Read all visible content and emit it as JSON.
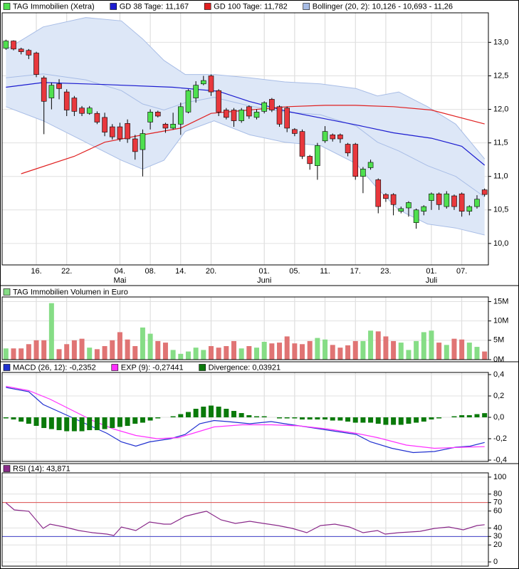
{
  "chart_data": [
    {
      "type": "candlestick",
      "name": "TAG Immobilien (Xetra)",
      "categories": [
        null,
        null,
        null,
        null,
        "16.",
        null,
        null,
        null,
        "22.",
        null,
        null,
        null,
        null,
        null,
        null,
        "04.",
        null,
        null,
        null,
        "08.",
        null,
        null,
        null,
        "14.",
        null,
        null,
        null,
        "20.",
        null,
        null,
        null,
        null,
        null,
        null,
        "01.",
        null,
        null,
        null,
        "05.",
        null,
        null,
        null,
        "11.",
        null,
        null,
        null,
        "17.",
        null,
        null,
        null,
        "23.",
        null,
        null,
        null,
        null,
        null,
        "01.",
        null,
        null,
        null,
        "07.",
        null,
        null,
        null
      ],
      "months": [
        null,
        null,
        null,
        null,
        null,
        null,
        null,
        null,
        null,
        null,
        null,
        null,
        null,
        null,
        null,
        "Mai",
        null,
        null,
        null,
        null,
        null,
        null,
        null,
        null,
        null,
        null,
        null,
        null,
        null,
        null,
        null,
        null,
        null,
        null,
        "Juni",
        null,
        null,
        null,
        null,
        null,
        null,
        null,
        null,
        null,
        null,
        null,
        null,
        null,
        null,
        null,
        null,
        null,
        null,
        null,
        null,
        null,
        "Juli",
        null,
        null,
        null,
        null,
        null,
        null,
        null
      ],
      "open": [
        12.91,
        13.02,
        12.9,
        12.88,
        12.84,
        12.47,
        12.17,
        12.38,
        12.26,
        12.17,
        12.02,
        11.94,
        11.94,
        11.88,
        11.74,
        11.74,
        11.79,
        11.56,
        11.4,
        11.81,
        11.96,
        11.78,
        11.72,
        11.78,
        11.96,
        12.17,
        12.38,
        12.5,
        12.28,
        11.99,
        11.99,
        11.83,
        12.04,
        11.88,
        11.97,
        12.15,
        12.04,
        12.02,
        11.7,
        11.67,
        11.3,
        11.16,
        11.53,
        11.62,
        11.62,
        11.48,
        11.48,
        11.0,
        11.13,
        10.95,
        10.73,
        10.73,
        10.48,
        10.53,
        10.31,
        10.48,
        10.64,
        10.74,
        10.55,
        10.71,
        10.74,
        10.48,
        10.55,
        10.8
      ],
      "high": [
        13.04,
        13.03,
        12.92,
        12.9,
        12.86,
        12.5,
        12.4,
        12.45,
        12.3,
        12.2,
        12.05,
        12.05,
        11.97,
        11.95,
        11.78,
        11.8,
        11.85,
        11.62,
        11.7,
        12.0,
        11.98,
        11.8,
        11.95,
        12.1,
        12.3,
        12.42,
        12.5,
        12.52,
        12.3,
        12.02,
        12.02,
        12.02,
        12.06,
        12.0,
        12.12,
        12.17,
        12.06,
        12.04,
        11.72,
        11.7,
        11.32,
        11.5,
        11.75,
        11.64,
        11.64,
        11.5,
        11.5,
        11.14,
        11.25,
        10.97,
        10.75,
        10.75,
        10.55,
        10.63,
        10.52,
        10.57,
        10.76,
        10.76,
        10.78,
        10.73,
        10.76,
        10.57,
        10.72,
        10.82
      ],
      "low": [
        12.89,
        12.88,
        12.82,
        12.75,
        12.48,
        11.63,
        12.0,
        12.15,
        11.9,
        11.9,
        11.9,
        11.92,
        11.78,
        11.6,
        11.55,
        11.52,
        11.5,
        11.25,
        11.0,
        11.7,
        11.88,
        11.65,
        11.7,
        11.62,
        11.94,
        12.1,
        12.36,
        12.2,
        11.9,
        11.85,
        11.74,
        11.8,
        11.86,
        11.85,
        11.94,
        11.96,
        11.74,
        11.66,
        11.6,
        11.26,
        11.1,
        10.95,
        11.5,
        11.52,
        11.5,
        11.3,
        10.95,
        10.75,
        11.1,
        10.45,
        10.62,
        10.42,
        10.45,
        10.4,
        10.22,
        10.42,
        10.5,
        10.5,
        10.52,
        10.5,
        10.4,
        10.42,
        10.52,
        10.7
      ],
      "close": [
        13.02,
        12.9,
        12.86,
        12.81,
        12.52,
        12.12,
        12.36,
        12.31,
        11.99,
        11.97,
        11.94,
        12.02,
        11.81,
        11.66,
        11.59,
        11.56,
        11.56,
        11.37,
        11.64,
        11.96,
        11.9,
        11.72,
        11.78,
        12.04,
        12.28,
        12.36,
        12.43,
        12.26,
        11.96,
        11.88,
        11.83,
        11.99,
        11.9,
        11.96,
        12.1,
        11.99,
        11.78,
        11.72,
        11.64,
        11.3,
        11.19,
        11.46,
        11.67,
        11.56,
        11.56,
        11.35,
        11.0,
        11.11,
        11.21,
        10.55,
        10.67,
        10.58,
        10.52,
        10.61,
        10.5,
        10.55,
        10.74,
        10.58,
        10.74,
        10.55,
        10.48,
        10.55,
        10.66,
        10.73
      ],
      "up_color": "#4fe04f",
      "down_color": "#e8383d",
      "ylim": [
        9.68,
        13.44
      ],
      "yticks": [
        {
          "value": 10,
          "label": "10,0"
        },
        {
          "value": 10.5,
          "label": "10,5"
        },
        {
          "value": 11,
          "label": "11,0"
        },
        {
          "value": 11.5,
          "label": "11,5"
        },
        {
          "value": 12,
          "label": "12,0"
        },
        {
          "value": 12.5,
          "label": "12,5"
        },
        {
          "value": 13,
          "label": "13,0"
        }
      ],
      "series": [
        {
          "name": "GD 38 Tage: 11,167",
          "color": "#1c1cd0",
          "x": [
            0,
            4.9,
            13,
            22,
            28,
            32,
            37,
            42,
            46,
            51,
            56,
            60,
            63
          ],
          "values": [
            12.33,
            12.4,
            12.37,
            12.33,
            12.27,
            12.12,
            11.97,
            11.86,
            11.77,
            11.65,
            11.57,
            11.45,
            11.167
          ]
        },
        {
          "name": "GD 100 Tage: 11,782",
          "color": "#e02020",
          "x": [
            2,
            9,
            13,
            18,
            23,
            27,
            32,
            37,
            42,
            46,
            51,
            56,
            63
          ],
          "values": [
            11.04,
            11.3,
            11.51,
            11.62,
            11.72,
            11.94,
            11.99,
            12.04,
            12.06,
            12.06,
            12.04,
            11.99,
            11.782
          ]
        }
      ],
      "band": {
        "name": "Bollinger (20, 2): 10,126 - 10,693 - 11,26",
        "color": "#a8bde6",
        "fill": "#dde7f7",
        "x": [
          0,
          4.9,
          10.5,
          15.2,
          18,
          20.8,
          23.6,
          27.4,
          32.1,
          36.7,
          41.4,
          46.1,
          48.9,
          51.7,
          55.5,
          59.2,
          63
        ],
        "upper": [
          12.89,
          13.23,
          13.37,
          13.32,
          13.05,
          12.73,
          12.52,
          12.52,
          12.47,
          12.41,
          12.38,
          12.31,
          12.2,
          12.26,
          12.04,
          11.78,
          11.26
        ],
        "middle": [
          12.47,
          12.53,
          12.44,
          12.28,
          12.08,
          11.99,
          12.1,
          12.18,
          12.05,
          11.96,
          11.92,
          11.75,
          11.51,
          11.38,
          11.16,
          11.0,
          10.693
        ],
        "lower": [
          12.04,
          11.83,
          11.51,
          11.24,
          11.11,
          11.24,
          11.67,
          11.83,
          11.62,
          11.51,
          11.46,
          11.19,
          10.82,
          10.5,
          10.29,
          10.23,
          10.126
        ]
      },
      "grid": true
    },
    {
      "type": "bar",
      "name": "TAG Immobilien Volumen in Euro",
      "up_color": "#86dd86",
      "down_color": "#e07474",
      "values": [
        2900000,
        2900000,
        2900000,
        4000000,
        5000000,
        5000000,
        14600000,
        2700000,
        4000000,
        5000000,
        5400000,
        3100000,
        2700000,
        3500000,
        5000000,
        7100000,
        5200000,
        3500000,
        8300000,
        6700000,
        4800000,
        4400000,
        2500000,
        1500000,
        2100000,
        3100000,
        2500000,
        3500000,
        3100000,
        3500000,
        4800000,
        2900000,
        3500000,
        3100000,
        4600000,
        4200000,
        4400000,
        6000000,
        4200000,
        4000000,
        4800000,
        5600000,
        5200000,
        3800000,
        3100000,
        3700000,
        4800000,
        4800000,
        7500000,
        7300000,
        6000000,
        4800000,
        4400000,
        2500000,
        4800000,
        7100000,
        7500000,
        4400000,
        3800000,
        5400000,
        5200000,
        4400000,
        3300000,
        2100000
      ],
      "ylim": [
        0,
        16200000
      ],
      "yticks": [
        {
          "value": 0,
          "label": "0M"
        },
        {
          "value": 5000000,
          "label": "5M"
        },
        {
          "value": 10000000,
          "label": "10M"
        },
        {
          "value": 15000000,
          "label": "15M"
        }
      ],
      "grid": true
    },
    {
      "type": "line",
      "series": [
        {
          "name": "MACD (26, 12): -0,2352",
          "color": "#2030d0",
          "x": [
            0,
            3,
            4.9,
            7.7,
            10.5,
            13.3,
            15.2,
            17.1,
            18.9,
            21.7,
            23.6,
            25.5,
            27.4,
            29.2,
            32.1,
            34.9,
            36.7,
            39.6,
            43.3,
            46.1,
            48,
            50.8,
            53.6,
            56.4,
            59.2,
            61.1,
            63
          ],
          "values": [
            0.28,
            0.24,
            0.12,
            0.03,
            -0.06,
            -0.15,
            -0.23,
            -0.27,
            -0.23,
            -0.2,
            -0.16,
            -0.06,
            -0.03,
            -0.04,
            -0.06,
            -0.04,
            -0.06,
            -0.09,
            -0.13,
            -0.16,
            -0.23,
            -0.29,
            -0.33,
            -0.32,
            -0.28,
            -0.27,
            -0.2352
          ]
        },
        {
          "name": "EXP (9): -0,27441",
          "color": "#ff30ff",
          "x": [
            0,
            3,
            5.8,
            8.6,
            11.4,
            14.2,
            17.1,
            19.9,
            22.7,
            24.6,
            27.4,
            31.1,
            34.9,
            38.6,
            42.4,
            46.1,
            48.9,
            52.7,
            56.4,
            60.2,
            63
          ],
          "values": [
            0.29,
            0.25,
            0.17,
            0.07,
            -0.03,
            -0.11,
            -0.17,
            -0.2,
            -0.19,
            -0.15,
            -0.09,
            -0.07,
            -0.07,
            -0.08,
            -0.11,
            -0.15,
            -0.19,
            -0.26,
            -0.29,
            -0.28,
            -0.27441
          ]
        },
        {
          "name": "Divergence: 0,03921",
          "color": "#0a7a0a",
          "type": "bar",
          "values": [
            -0.01,
            -0.02,
            -0.04,
            -0.06,
            -0.08,
            -0.1,
            -0.11,
            -0.12,
            -0.13,
            -0.13,
            -0.13,
            -0.12,
            -0.12,
            -0.11,
            -0.1,
            -0.09,
            -0.08,
            -0.06,
            -0.05,
            -0.03,
            -0.01,
            0,
            0.01,
            0.03,
            0.05,
            0.08,
            0.1,
            0.11,
            0.1,
            0.08,
            0.06,
            0.04,
            0.02,
            0.01,
            0.01,
            0,
            -0.01,
            -0.01,
            -0.01,
            -0.02,
            -0.02,
            -0.02,
            -0.02,
            -0.03,
            -0.03,
            -0.04,
            -0.05,
            -0.05,
            -0.05,
            -0.06,
            -0.07,
            -0.07,
            -0.07,
            -0.06,
            -0.05,
            -0.04,
            -0.02,
            -0.01,
            0,
            0.01,
            0.02,
            0.02,
            0.03,
            0.0392
          ]
        }
      ],
      "ylim": [
        -0.413,
        0.42
      ],
      "yticks": [
        {
          "value": -0.4,
          "label": "-0,4"
        },
        {
          "value": -0.2,
          "label": "-0,2"
        },
        {
          "value": 0,
          "label": "0,0"
        },
        {
          "value": 0.2,
          "label": "0,2"
        },
        {
          "value": 0.4,
          "label": "0,4"
        }
      ],
      "grid": true
    },
    {
      "type": "line",
      "series": [
        {
          "name": "RSI (14): 43,871",
          "color": "#8a2a8a",
          "x": [
            0,
            1.1,
            3,
            4.9,
            5.8,
            7.7,
            9.6,
            11.4,
            13.3,
            14.2,
            15.2,
            17.1,
            18.9,
            20.8,
            21.7,
            23.6,
            25.5,
            26.4,
            28.3,
            30.2,
            32.1,
            33.9,
            35.8,
            37.7,
            39.6,
            41.4,
            43.3,
            45.2,
            47,
            48.9,
            49.9,
            51.7,
            54.5,
            56.4,
            58.3,
            60.2,
            62,
            63
          ],
          "values": [
            69.7,
            61.3,
            59.7,
            39.5,
            44.5,
            41.2,
            37,
            34.5,
            32.8,
            31.1,
            41.2,
            37,
            47.1,
            44.5,
            44.5,
            53.8,
            58,
            59.7,
            49.6,
            45.4,
            47.9,
            45.4,
            42.9,
            39.5,
            34.5,
            42.9,
            44.5,
            41.2,
            34.5,
            37,
            32.8,
            34.5,
            36.1,
            39.5,
            41.2,
            37.8,
            42.9,
            43.871
          ]
        }
      ],
      "hlines": [
        {
          "value": 70,
          "color": "#e05050"
        },
        {
          "value": 30,
          "color": "#4040c8"
        }
      ],
      "ylim": [
        -5,
        105
      ],
      "yticks": [
        0,
        20,
        30,
        40,
        60,
        70,
        80,
        100
      ],
      "grid": true
    }
  ]
}
